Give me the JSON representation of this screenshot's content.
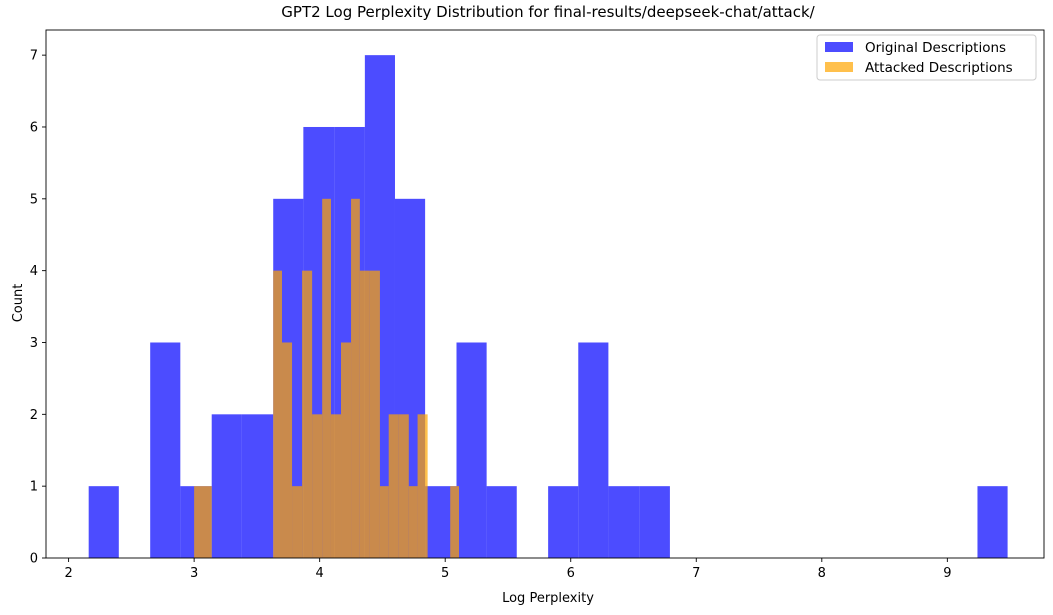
{
  "chart_data": {
    "type": "bar",
    "title": "GPT2 Log Perplexity Distribution for final-results/deepseek-chat/attack/",
    "xlabel": "Log Perplexity",
    "ylabel": "Count",
    "xlim": [
      1.82,
      9.77
    ],
    "ylim": [
      0,
      7.35
    ],
    "xticks": [
      2,
      3,
      4,
      5,
      6,
      7,
      8,
      9
    ],
    "yticks": [
      0,
      1,
      2,
      3,
      4,
      5,
      6,
      7
    ],
    "grid": false,
    "legend_position": "top-right",
    "series": [
      {
        "name": "Original Descriptions",
        "color": "#0000ff",
        "alpha": 0.7,
        "bins": [
          [
            2.16,
            2.4,
            1
          ],
          [
            2.65,
            2.89,
            3
          ],
          [
            2.89,
            3.14,
            1
          ],
          [
            3.14,
            3.38,
            2
          ],
          [
            3.38,
            3.63,
            2
          ],
          [
            3.63,
            3.87,
            5
          ],
          [
            3.87,
            4.12,
            6
          ],
          [
            4.12,
            4.36,
            6
          ],
          [
            4.36,
            4.6,
            7
          ],
          [
            4.6,
            4.84,
            5
          ],
          [
            4.84,
            5.09,
            1
          ],
          [
            5.09,
            5.33,
            3
          ],
          [
            5.33,
            5.57,
            1
          ],
          [
            5.82,
            6.06,
            1
          ],
          [
            6.06,
            6.3,
            3
          ],
          [
            6.3,
            6.55,
            1
          ],
          [
            6.55,
            6.79,
            1
          ],
          [
            9.24,
            9.48,
            1
          ]
        ]
      },
      {
        "name": "Attacked Descriptions",
        "color": "#ffa500",
        "alpha": 0.7,
        "bins": [
          [
            3.0,
            3.14,
            1
          ],
          [
            3.63,
            3.7,
            4
          ],
          [
            3.7,
            3.78,
            3
          ],
          [
            3.78,
            3.86,
            1
          ],
          [
            3.86,
            3.94,
            4
          ],
          [
            3.94,
            4.02,
            2
          ],
          [
            4.02,
            4.09,
            5
          ],
          [
            4.09,
            4.17,
            2
          ],
          [
            4.17,
            4.25,
            3
          ],
          [
            4.25,
            4.32,
            5
          ],
          [
            4.32,
            4.4,
            4
          ],
          [
            4.4,
            4.48,
            4
          ],
          [
            4.48,
            4.55,
            1
          ],
          [
            4.55,
            4.63,
            2
          ],
          [
            4.63,
            4.71,
            2
          ],
          [
            4.71,
            4.78,
            1
          ],
          [
            4.78,
            4.86,
            2
          ],
          [
            5.04,
            5.11,
            1
          ]
        ]
      }
    ]
  }
}
